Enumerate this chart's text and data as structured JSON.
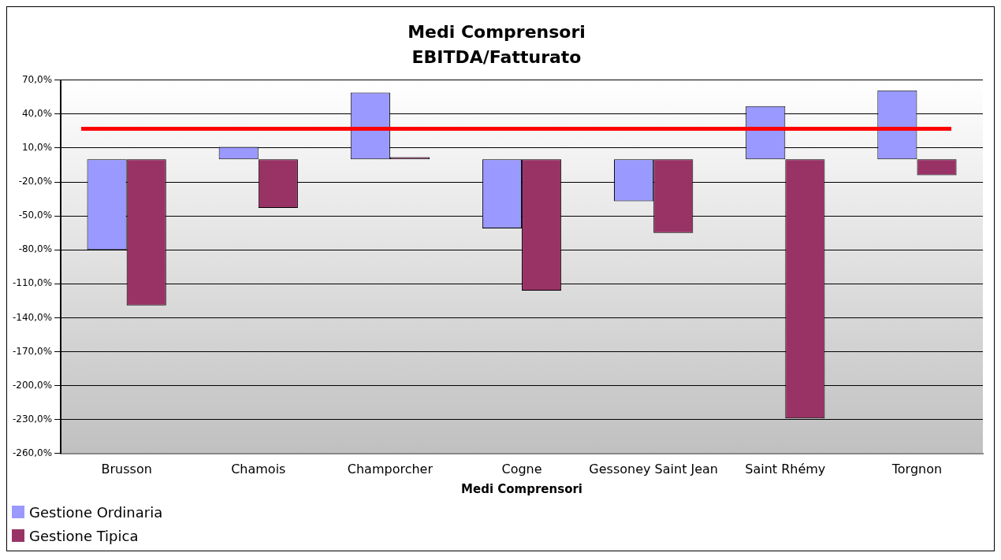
{
  "chart_data": {
    "type": "bar",
    "title": "Medi Comprensori",
    "subtitle": "EBITDA/Fatturato",
    "xlabel": "Medi Comprensori",
    "categories": [
      "Brusson",
      "Chamois",
      "Champorcher",
      "Cogne",
      "Gessoney Saint Jean",
      "Saint Rhémy",
      "Torgnon"
    ],
    "series": [
      {
        "name": "Gestione Ordinaria",
        "color": "#9999ff",
        "values": [
          -80,
          11,
          59,
          -61,
          -37,
          47,
          61
        ]
      },
      {
        "name": "Gestione Tipica",
        "color": "#993366",
        "values": [
          -129,
          -43,
          2,
          -116,
          -65,
          -229,
          -14
        ]
      }
    ],
    "ylim": [
      -260,
      70
    ],
    "yticks": [
      {
        "value": 70,
        "label": "70,0%"
      },
      {
        "value": 40,
        "label": "40,0%"
      },
      {
        "value": 10,
        "label": "10,0%"
      },
      {
        "value": -20,
        "label": "-20,0%"
      },
      {
        "value": -50,
        "label": "-50,0%"
      },
      {
        "value": -80,
        "label": "-80,0%"
      },
      {
        "value": -110,
        "label": "-110,0%"
      },
      {
        "value": -140,
        "label": "-140,0%"
      },
      {
        "value": -170,
        "label": "-170,0%"
      },
      {
        "value": -200,
        "label": "-200,0%"
      },
      {
        "value": -230,
        "label": "-230,0%"
      },
      {
        "value": -260,
        "label": "-260,0%"
      }
    ],
    "ref_lines": [
      {
        "axis": "y",
        "value": 27,
        "color": "#ff0000"
      }
    ],
    "grid": "y",
    "legend": "bottom left"
  }
}
